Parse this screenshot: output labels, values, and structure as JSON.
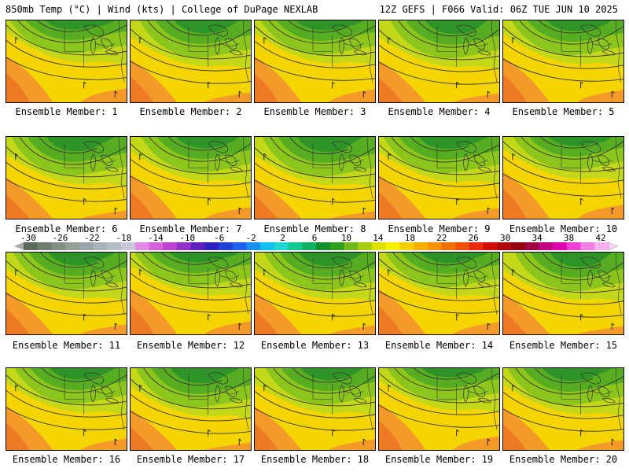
{
  "header": {
    "left_title": "850mb Temp (°C) | Wind (kts) | College of DuPage NEXLAB",
    "right_title": "12Z GEFS | F066 Valid: 06Z TUE JUN 10 2025"
  },
  "members": [
    {
      "label": "Ensemble Member: 1"
    },
    {
      "label": "Ensemble Member: 2"
    },
    {
      "label": "Ensemble Member: 3"
    },
    {
      "label": "Ensemble Member: 4"
    },
    {
      "label": "Ensemble Member: 5"
    },
    {
      "label": "Ensemble Member: 6"
    },
    {
      "label": "Ensemble Member: 7"
    },
    {
      "label": "Ensemble Member: 8"
    },
    {
      "label": "Ensemble Member: 9"
    },
    {
      "label": "Ensemble Member: 10"
    },
    {
      "label": "Ensemble Member: 11"
    },
    {
      "label": "Ensemble Member: 12"
    },
    {
      "label": "Ensemble Member: 13"
    },
    {
      "label": "Ensemble Member: 14"
    },
    {
      "label": "Ensemble Member: 15"
    },
    {
      "label": "Ensemble Member: 16"
    },
    {
      "label": "Ensemble Member: 17"
    },
    {
      "label": "Ensemble Member: 18"
    },
    {
      "label": "Ensemble Member: 19"
    },
    {
      "label": "Ensemble Member: 20"
    }
  ],
  "colorbar": {
    "ticks": [
      "-30",
      "-26",
      "-22",
      "-18",
      "-14",
      "-10",
      "-6",
      "-2",
      "2",
      "6",
      "10",
      "14",
      "18",
      "22",
      "26",
      "30",
      "34",
      "38",
      "42"
    ],
    "colors": [
      "#5a6a5a",
      "#6e7e6e",
      "#828f82",
      "#95a095",
      "#9aa4aa",
      "#a8b0b8",
      "#b4bcc8",
      "#c8c8d8",
      "#e28ae6",
      "#d660dc",
      "#c040d0",
      "#9030c8",
      "#6020c0",
      "#3020c0",
      "#2040d8",
      "#2060f0",
      "#1890f0",
      "#10c0f0",
      "#20d8d0",
      "#10c890",
      "#10b060",
      "#109030",
      "#30a020",
      "#70b818",
      "#a8cc10",
      "#e0e000",
      "#f8f000",
      "#f8d000",
      "#f8b000",
      "#f89000",
      "#f07000",
      "#f05000",
      "#e82808",
      "#d01008",
      "#b00808",
      "#900010",
      "#a00040",
      "#c00080",
      "#e000b0",
      "#f040d8",
      "#f080e8",
      "#f8b0f0"
    ],
    "arrow_color": "#aaaaaa"
  },
  "map_colors": {
    "fill_orange": "#f39a2a",
    "fill_deep_orange": "#ee7a24",
    "fill_yellow": "#f5d500",
    "fill_light_green": "#c4d81a",
    "fill_green": "#8cc51c",
    "fill_mid_green": "#56ad22",
    "fill_dark_green": "#2e9427",
    "contour_color": "#333333",
    "border_color": "#333333"
  }
}
